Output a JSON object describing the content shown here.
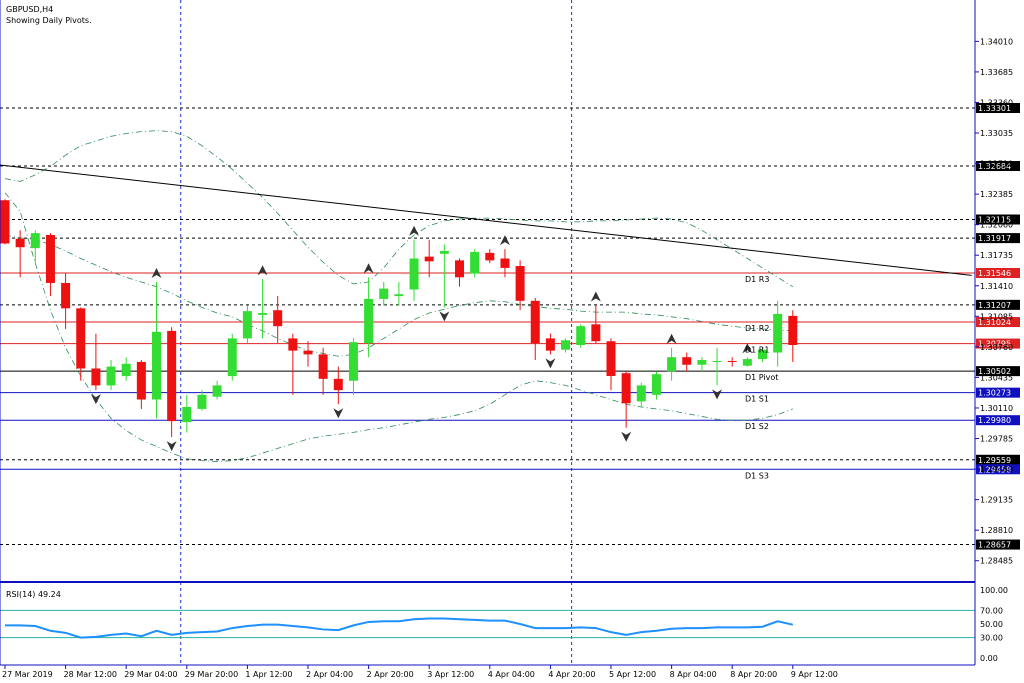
{
  "header": {
    "symbol": "GBPUSD,H4",
    "subtitle": "Showing Daily Pivots."
  },
  "colors": {
    "background": "#ffffff",
    "bull": "#33dd33",
    "bear": "#ee1111",
    "trendline": "#000000",
    "bollinger": "#2e8b57",
    "resistance": "#dd2222",
    "support": "#1010c0",
    "pivot": "#000000",
    "rsi_line": "#1e90ff",
    "rsi_levels": "#20b2aa",
    "period_separator": "#2233cc",
    "axis": "#1010c0"
  },
  "chart_data": [
    {
      "type": "candlestick",
      "symbol": "GBPUSD",
      "timeframe": "H4",
      "ylim": [
        1.2828,
        1.3445
      ],
      "y_ticks": [
        "1.34010",
        "1.33685",
        "1.33360",
        "1.33035",
        "1.32710",
        "1.32385",
        "1.32060",
        "1.31735",
        "1.31410",
        "1.31085",
        "1.30760",
        "1.30435",
        "1.30110",
        "1.29785",
        "1.29460",
        "1.29135",
        "1.28810",
        "1.28485"
      ],
      "x_ticks": [
        "27 Mar 2019",
        "28 Mar 12:00",
        "29 Mar 04:00",
        "29 Mar 20:00",
        "1 Apr 12:00",
        "2 Apr 04:00",
        "2 Apr 20:00",
        "3 Apr 12:00",
        "4 Apr 04:00",
        "4 Apr 20:00",
        "5 Apr 12:00",
        "8 Apr 04:00",
        "8 Apr 20:00",
        "9 Apr 12:00"
      ],
      "x_tick_index": [
        0,
        4,
        8,
        12,
        16,
        20,
        24,
        28,
        32,
        36,
        40,
        44,
        48,
        52
      ],
      "candles": [
        {
          "o": 1.3232,
          "h": 1.3233,
          "l": 1.3185,
          "c": 1.3186
        },
        {
          "o": 1.3191,
          "h": 1.32,
          "l": 1.315,
          "c": 1.3182
        },
        {
          "o": 1.3181,
          "h": 1.32,
          "l": 1.3165,
          "c": 1.3197
        },
        {
          "o": 1.3195,
          "h": 1.3197,
          "l": 1.313,
          "c": 1.3144
        },
        {
          "o": 1.3144,
          "h": 1.3155,
          "l": 1.3095,
          "c": 1.3117
        },
        {
          "o": 1.3117,
          "h": 1.3118,
          "l": 1.304,
          "c": 1.3053
        },
        {
          "o": 1.3053,
          "h": 1.309,
          "l": 1.303,
          "c": 1.3035
        },
        {
          "o": 1.3035,
          "h": 1.3062,
          "l": 1.303,
          "c": 1.3055
        },
        {
          "o": 1.3045,
          "h": 1.3065,
          "l": 1.304,
          "c": 1.3058
        },
        {
          "o": 1.306,
          "h": 1.3062,
          "l": 1.301,
          "c": 1.302
        },
        {
          "o": 1.302,
          "h": 1.3145,
          "l": 1.3,
          "c": 1.3092
        },
        {
          "o": 1.3093,
          "h": 1.3097,
          "l": 1.298,
          "c": 1.2997
        },
        {
          "o": 1.2996,
          "h": 1.3025,
          "l": 1.2985,
          "c": 1.3012
        },
        {
          "o": 1.301,
          "h": 1.303,
          "l": 1.3008,
          "c": 1.3025
        },
        {
          "o": 1.3023,
          "h": 1.304,
          "l": 1.302,
          "c": 1.3035
        },
        {
          "o": 1.3045,
          "h": 1.309,
          "l": 1.304,
          "c": 1.3085
        },
        {
          "o": 1.3085,
          "h": 1.312,
          "l": 1.308,
          "c": 1.3114
        },
        {
          "o": 1.311,
          "h": 1.3148,
          "l": 1.3085,
          "c": 1.3112
        },
        {
          "o": 1.3115,
          "h": 1.313,
          "l": 1.308,
          "c": 1.3098
        },
        {
          "o": 1.3085,
          "h": 1.309,
          "l": 1.3025,
          "c": 1.3072
        },
        {
          "o": 1.3072,
          "h": 1.3082,
          "l": 1.3055,
          "c": 1.3068
        },
        {
          "o": 1.3068,
          "h": 1.3075,
          "l": 1.3025,
          "c": 1.3042
        },
        {
          "o": 1.3042,
          "h": 1.3055,
          "l": 1.3015,
          "c": 1.303
        },
        {
          "o": 1.304,
          "h": 1.3085,
          "l": 1.3025,
          "c": 1.3081
        },
        {
          "o": 1.308,
          "h": 1.315,
          "l": 1.3065,
          "c": 1.3127
        },
        {
          "o": 1.3127,
          "h": 1.3145,
          "l": 1.312,
          "c": 1.3138
        },
        {
          "o": 1.313,
          "h": 1.3145,
          "l": 1.312,
          "c": 1.3132
        },
        {
          "o": 1.3137,
          "h": 1.319,
          "l": 1.3125,
          "c": 1.317
        },
        {
          "o": 1.3172,
          "h": 1.319,
          "l": 1.315,
          "c": 1.3167
        },
        {
          "o": 1.3175,
          "h": 1.3185,
          "l": 1.3118,
          "c": 1.3178
        },
        {
          "o": 1.3168,
          "h": 1.317,
          "l": 1.314,
          "c": 1.315
        },
        {
          "o": 1.3154,
          "h": 1.318,
          "l": 1.315,
          "c": 1.3177
        },
        {
          "o": 1.3176,
          "h": 1.318,
          "l": 1.3165,
          "c": 1.3168
        },
        {
          "o": 1.317,
          "h": 1.318,
          "l": 1.315,
          "c": 1.316
        },
        {
          "o": 1.3162,
          "h": 1.3168,
          "l": 1.3115,
          "c": 1.3125
        },
        {
          "o": 1.3125,
          "h": 1.3128,
          "l": 1.3062,
          "c": 1.308
        },
        {
          "o": 1.3085,
          "h": 1.309,
          "l": 1.3068,
          "c": 1.3072
        },
        {
          "o": 1.3073,
          "h": 1.3085,
          "l": 1.307,
          "c": 1.3083
        },
        {
          "o": 1.3078,
          "h": 1.31,
          "l": 1.3075,
          "c": 1.3098
        },
        {
          "o": 1.31,
          "h": 1.312,
          "l": 1.308,
          "c": 1.3082
        },
        {
          "o": 1.3082,
          "h": 1.3085,
          "l": 1.303,
          "c": 1.3045
        },
        {
          "o": 1.3048,
          "h": 1.305,
          "l": 1.299,
          "c": 1.3016
        },
        {
          "o": 1.3018,
          "h": 1.3038,
          "l": 1.3012,
          "c": 1.3035
        },
        {
          "o": 1.3025,
          "h": 1.305,
          "l": 1.302,
          "c": 1.3047
        },
        {
          "o": 1.305,
          "h": 1.3075,
          "l": 1.304,
          "c": 1.3065
        },
        {
          "o": 1.3065,
          "h": 1.307,
          "l": 1.305,
          "c": 1.3057
        },
        {
          "o": 1.3057,
          "h": 1.3065,
          "l": 1.305,
          "c": 1.3062
        },
        {
          "o": 1.306,
          "h": 1.3075,
          "l": 1.3035,
          "c": 1.3061
        },
        {
          "o": 1.3061,
          "h": 1.3065,
          "l": 1.3055,
          "c": 1.306
        },
        {
          "o": 1.3056,
          "h": 1.3065,
          "l": 1.3055,
          "c": 1.3063
        },
        {
          "o": 1.3063,
          "h": 1.3075,
          "l": 1.306,
          "c": 1.3073
        },
        {
          "o": 1.307,
          "h": 1.3125,
          "l": 1.3055,
          "c": 1.3111
        },
        {
          "o": 1.3109,
          "h": 1.3115,
          "l": 1.306,
          "c": 1.3078
        }
      ],
      "trendline": {
        "start_index": -0.6,
        "start_price": 1.327,
        "end_index": 63.8,
        "end_price": 1.3152
      },
      "bollinger": {
        "upper": [
          1.3255,
          1.3252,
          1.3259,
          1.3268,
          1.328,
          1.329,
          1.3295,
          1.33,
          1.3303,
          1.3305,
          1.3306,
          1.3305,
          1.33,
          1.329,
          1.3278,
          1.3265,
          1.325,
          1.3235,
          1.3218,
          1.32,
          1.3182,
          1.3166,
          1.3152,
          1.3143,
          1.3145,
          1.316,
          1.318,
          1.3195,
          1.3205,
          1.321,
          1.3212,
          1.3213,
          1.3213,
          1.3212,
          1.3211,
          1.321,
          1.321,
          1.3209,
          1.3209,
          1.321,
          1.321,
          1.3211,
          1.3212,
          1.3213,
          1.3212,
          1.3208,
          1.32,
          1.319,
          1.318,
          1.317,
          1.316,
          1.315,
          1.314
        ],
        "middle": [
          1.3195,
          1.3192,
          1.319,
          1.3185,
          1.3178,
          1.317,
          1.3163,
          1.3156,
          1.315,
          1.3145,
          1.314,
          1.3133,
          1.3125,
          1.3118,
          1.3112,
          1.3108,
          1.31,
          1.3093,
          1.3085,
          1.3078,
          1.3072,
          1.3069,
          1.3066,
          1.3068,
          1.3075,
          1.3085,
          1.3095,
          1.3105,
          1.3112,
          1.3116,
          1.312,
          1.3123,
          1.3125,
          1.3124,
          1.3121,
          1.3119,
          1.3117,
          1.3116,
          1.3114,
          1.3113,
          1.3113,
          1.3113,
          1.3111,
          1.311,
          1.3108,
          1.3106,
          1.3103,
          1.31,
          1.3098,
          1.3096,
          1.3095,
          1.3094,
          1.3093
        ],
        "lower": [
          1.324,
          1.322,
          1.3165,
          1.3115,
          1.3075,
          1.3045,
          1.302,
          1.3,
          1.2987,
          1.2977,
          1.297,
          1.2963,
          1.2957,
          1.2955,
          1.2954,
          1.2955,
          1.2958,
          1.2963,
          1.2968,
          1.2973,
          1.2978,
          1.2981,
          1.2983,
          1.2985,
          1.2988,
          1.299,
          1.2993,
          1.2996,
          1.2999,
          1.3001,
          1.3004,
          1.3008,
          1.3015,
          1.3025,
          1.3035,
          1.304,
          1.3038,
          1.3035,
          1.303,
          1.3025,
          1.302,
          1.3015,
          1.3012,
          1.301,
          1.3008,
          1.3005,
          1.3002,
          1.2999,
          1.2998,
          1.2998,
          1.3,
          1.3004,
          1.301
        ]
      },
      "pivots": [
        {
          "price": 1.33301,
          "label": "1.33301",
          "style": "dash",
          "kind": "pivot"
        },
        {
          "price": 1.32684,
          "label": "1.32684",
          "style": "dash",
          "kind": "pivot"
        },
        {
          "price": 1.32115,
          "label": "1.32115",
          "style": "dash",
          "kind": "pivot"
        },
        {
          "price": 1.31917,
          "label": "1.31917",
          "style": "dash",
          "kind": "pivot"
        },
        {
          "price": 1.31546,
          "label": "1.31546",
          "style": "solid",
          "kind": "resistance",
          "name": "D1 R3"
        },
        {
          "price": 1.31207,
          "label": "1.31207",
          "style": "dash",
          "kind": "pivot"
        },
        {
          "price": 1.31024,
          "label": "1.31024",
          "style": "solid",
          "kind": "resistance",
          "name": "D1 R2"
        },
        {
          "price": 1.30795,
          "label": "1.30795",
          "style": "solid",
          "kind": "resistance",
          "name": "D1 R1"
        },
        {
          "price": 1.30502,
          "label": "1.30502",
          "style": "solid",
          "kind": "pivot",
          "name": "D1 Pivot"
        },
        {
          "price": 1.30273,
          "label": "1.30273",
          "style": "solid",
          "kind": "support",
          "name": "D1 S1"
        },
        {
          "price": 1.2998,
          "label": "1.29980",
          "style": "solid",
          "kind": "support",
          "name": "D1 S2"
        },
        {
          "price": 1.29559,
          "label": "1.29559",
          "style": "dash",
          "kind": "pivot"
        },
        {
          "price": 1.29458,
          "label": "1.29458",
          "style": "solid",
          "kind": "support",
          "name": "D1 S3"
        },
        {
          "price": 1.28657,
          "label": "1.28657",
          "style": "dash",
          "kind": "pivot"
        }
      ],
      "separators_index": [
        11.6,
        37.4
      ],
      "fractals": [
        {
          "i": 6,
          "dir": "down"
        },
        {
          "i": 10,
          "dir": "up"
        },
        {
          "i": 11,
          "dir": "down"
        },
        {
          "i": 17,
          "dir": "up"
        },
        {
          "i": 22,
          "dir": "down"
        },
        {
          "i": 24,
          "dir": "up"
        },
        {
          "i": 27,
          "dir": "up"
        },
        {
          "i": 29,
          "dir": "down"
        },
        {
          "i": 33,
          "dir": "up"
        },
        {
          "i": 36,
          "dir": "down"
        },
        {
          "i": 39,
          "dir": "up"
        },
        {
          "i": 41,
          "dir": "down"
        },
        {
          "i": 44,
          "dir": "up"
        },
        {
          "i": 47,
          "dir": "down"
        },
        {
          "i": 49,
          "dir": "up"
        }
      ]
    },
    {
      "type": "line",
      "indicator": "RSI",
      "title": "RSI(14) 49.24",
      "ylim": [
        0,
        100
      ],
      "y_ticks": [
        "100.00",
        "70.00",
        "50.00",
        "30.00",
        "0.00"
      ],
      "levels": [
        70,
        30
      ],
      "values": [
        48,
        48,
        47,
        40,
        37,
        30,
        31,
        34,
        36,
        32,
        40,
        34,
        37,
        38,
        39,
        44,
        47,
        49,
        49,
        47,
        45,
        42,
        41,
        48,
        53,
        54,
        54,
        57,
        58,
        58,
        57,
        56,
        55,
        55,
        50,
        44,
        44,
        44,
        45,
        44,
        38,
        34,
        38,
        40,
        43,
        44,
        44,
        45,
        45,
        45,
        46,
        54,
        49
      ]
    }
  ]
}
